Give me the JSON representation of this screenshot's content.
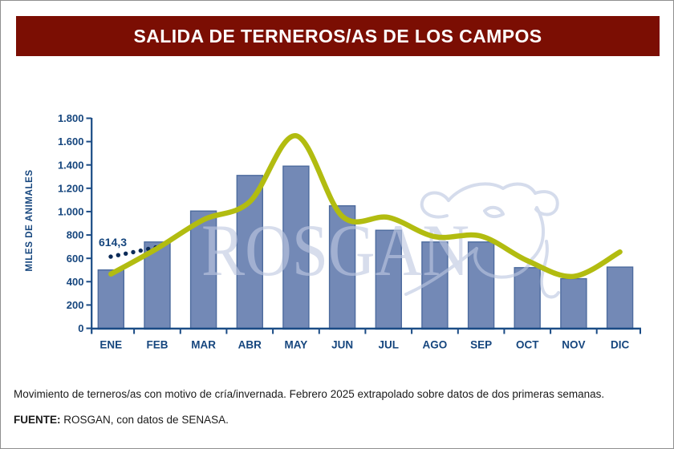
{
  "header": {
    "title": "SALIDA DE TERNEROS/AS DE LOS CAMPOS"
  },
  "watermark": {
    "text": "ROSGAN"
  },
  "chart_data": {
    "type": "bar",
    "title": "SALIDA DE TERNEROS/AS DE LOS CAMPOS",
    "xlabel": "",
    "ylabel": "MILES DE ANIMALES",
    "categories": [
      "ENE",
      "FEB",
      "MAR",
      "ABR",
      "MAY",
      "JUN",
      "JUL",
      "AGO",
      "SEP",
      "OCT",
      "NOV",
      "DIC"
    ],
    "bar_values": [
      500,
      740,
      1005,
      1310,
      1390,
      1050,
      840,
      740,
      740,
      520,
      425,
      525
    ],
    "line_values": [
      465,
      685,
      930,
      1085,
      1650,
      960,
      950,
      785,
      790,
      580,
      445,
      655
    ],
    "dot_values": [
      614.3,
      627,
      640,
      653,
      666,
      680,
      693
    ],
    "annotation_label": "614,3",
    "annotation_value": 614.3,
    "y_tick_labels": [
      "1.800",
      "1.600",
      "1.400",
      "1.200",
      "1.000",
      "800",
      "600",
      "400",
      "200",
      "0"
    ],
    "ylim": [
      0,
      1800
    ],
    "grid": false,
    "legend": "none"
  },
  "footer": {
    "note": "Movimiento de terneros/as con motivo de cría/invernada. Febrero 2025 extrapolado sobre datos de dos primeras semanas.",
    "source_label": "FUENTE:",
    "source_text": " ROSGAN, con datos de SENASA."
  },
  "colors": {
    "header_bg": "#7B0E03",
    "bar_fill": "#7389B6",
    "bar_border": "#4D6B9E",
    "trend_line": "#B2BC10",
    "axis_text": "#16467E",
    "axis_line": "#1A4B85",
    "dots": "#0C2B58",
    "watermark": "#BFC9E2"
  }
}
